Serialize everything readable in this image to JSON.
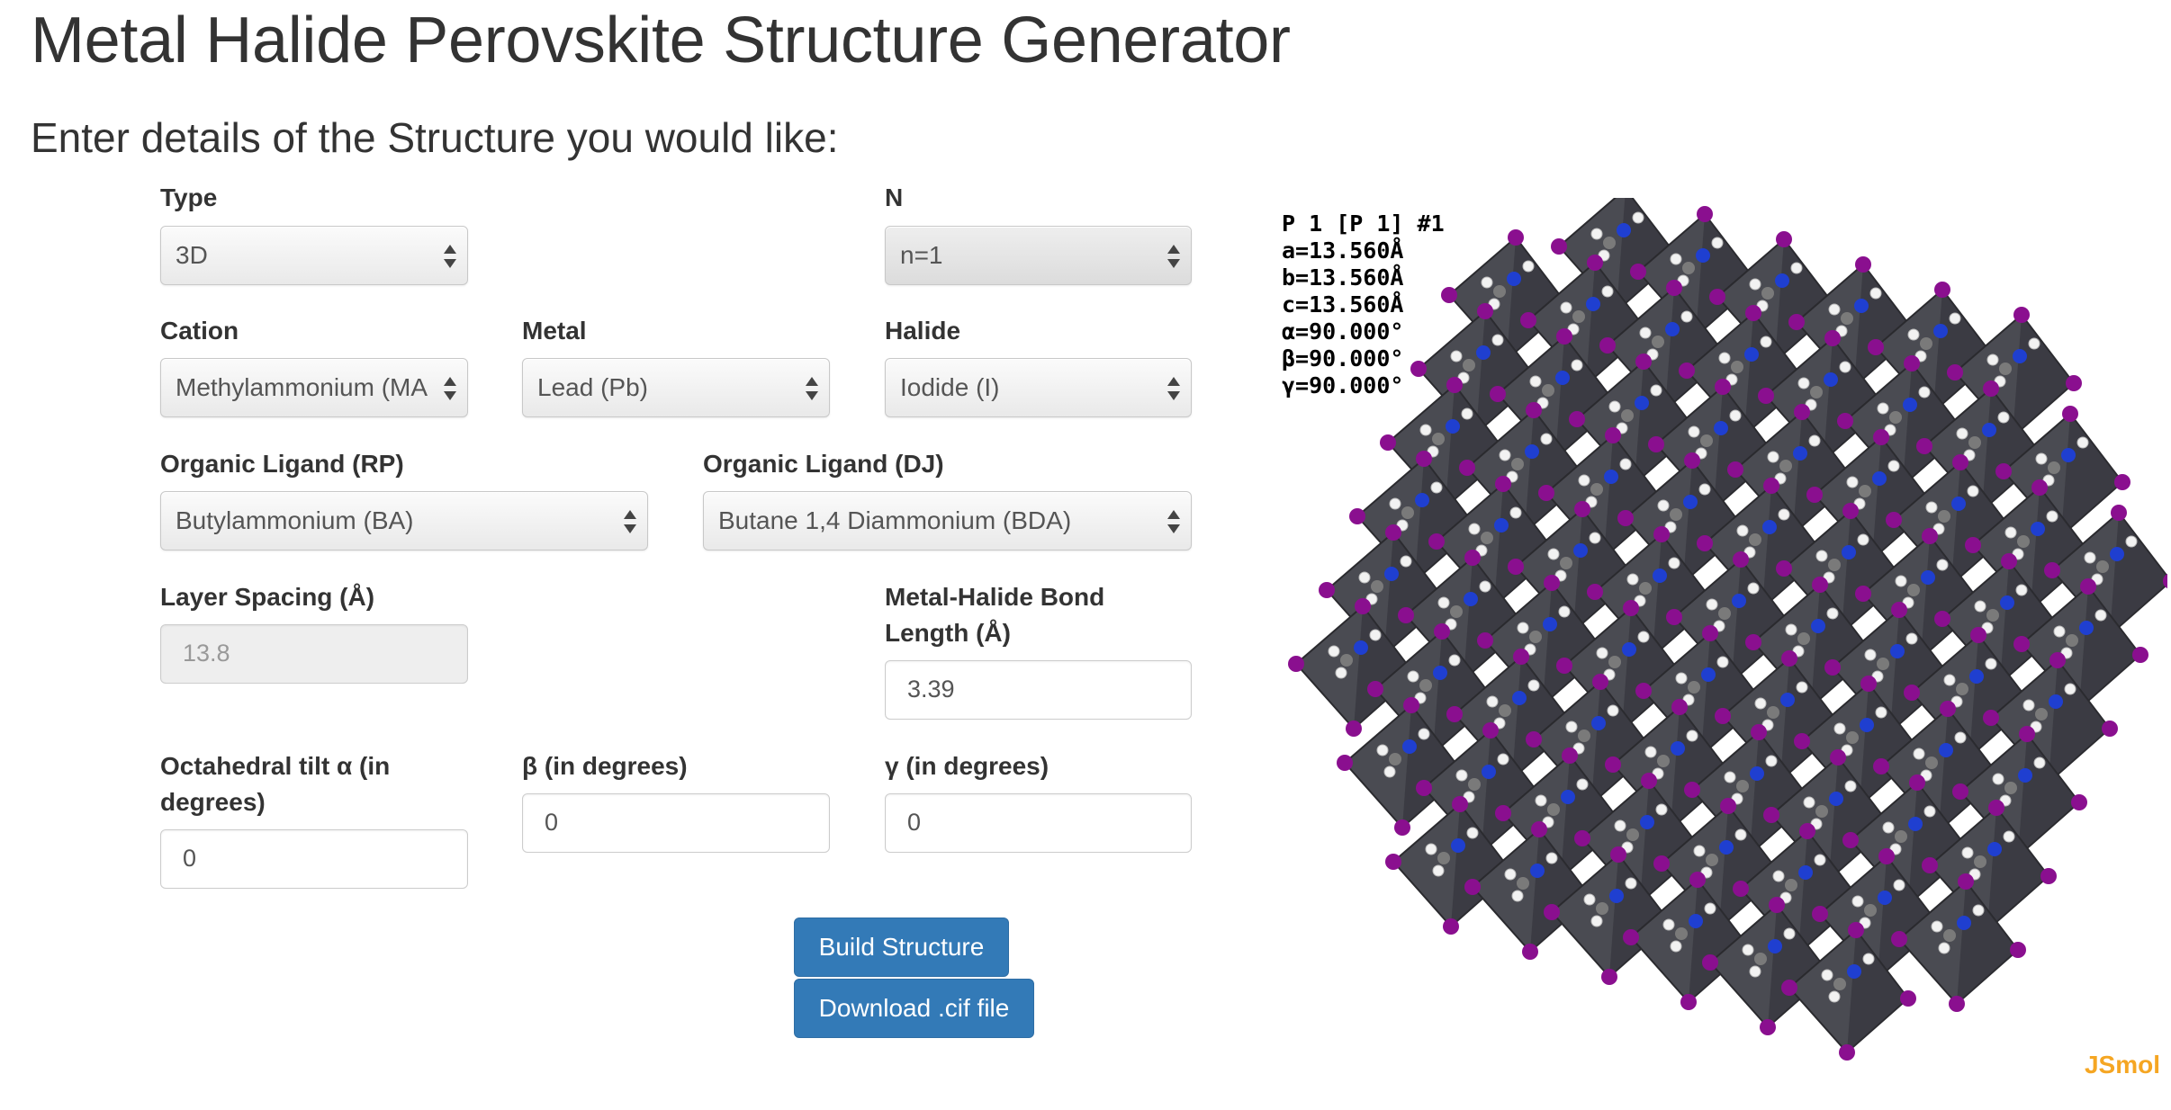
{
  "header": {
    "title": "Metal Halide Perovskite Structure Generator",
    "subtitle": "Enter details of the Structure you would like:"
  },
  "form": {
    "type": {
      "label": "Type",
      "value": "3D"
    },
    "n": {
      "label": "N",
      "value": "n=1"
    },
    "cation": {
      "label": "Cation",
      "value": "Methylammonium (MA"
    },
    "metal": {
      "label": "Metal",
      "value": "Lead (Pb)"
    },
    "halide": {
      "label": "Halide",
      "value": "Iodide (I)"
    },
    "ligand_rp": {
      "label": "Organic Ligand (RP)",
      "value": "Butylammonium (BA)"
    },
    "ligand_dj": {
      "label": "Organic Ligand (DJ)",
      "value": "Butane 1,4 Diammonium (BDA)"
    },
    "layer_spacing": {
      "label": "Layer Spacing (Å)",
      "value": "13.8"
    },
    "bond_length": {
      "label_line1": "Metal-Halide Bond",
      "label_line2": "Length (Å)",
      "value": "3.39"
    },
    "tilt_alpha": {
      "label_line1": "Octahedral tilt α (in",
      "label_line2": "degrees)",
      "value": "0"
    },
    "tilt_beta": {
      "label": "β (in degrees)",
      "value": "0"
    },
    "tilt_gamma": {
      "label": "γ (in degrees)",
      "value": "0"
    }
  },
  "buttons": {
    "build": "Build Structure",
    "download": "Download .cif file"
  },
  "viewer": {
    "cell_info": [
      "P 1 [P 1] #1",
      "a=13.560Å",
      "b=13.560Å",
      "c=13.560Å",
      "α=90.000°",
      "β=90.000°",
      "γ=90.000°"
    ],
    "logo": "JSmol",
    "colors": {
      "octahedron": "#4a4b52",
      "octahedron_dark": "#2f3036",
      "halide": "#8a0f8f",
      "nitrogen": "#1f3fd0",
      "carbon": "#7a7a7a",
      "hydrogen": "#f2f2f2"
    }
  }
}
